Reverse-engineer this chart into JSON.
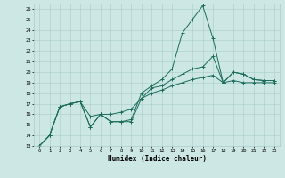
{
  "xlabel": "Humidex (Indice chaleur)",
  "bg_color": "#cde8e4",
  "line_color": "#1a6b5a",
  "xlim": [
    -0.5,
    23.5
  ],
  "ylim": [
    13,
    26.5
  ],
  "xticks": [
    0,
    1,
    2,
    3,
    4,
    5,
    6,
    7,
    8,
    9,
    10,
    11,
    12,
    13,
    14,
    15,
    16,
    17,
    18,
    19,
    20,
    21,
    22,
    23
  ],
  "yticks": [
    13,
    14,
    15,
    16,
    17,
    18,
    19,
    20,
    21,
    22,
    23,
    24,
    25,
    26
  ],
  "line1_x": [
    0,
    1,
    2,
    3,
    4,
    5,
    6,
    7,
    8,
    9,
    10,
    11,
    12,
    13,
    14,
    15,
    16,
    17,
    18,
    19,
    20,
    21,
    22,
    23
  ],
  "line1_y": [
    13.0,
    14.0,
    16.7,
    17.0,
    17.2,
    15.8,
    16.0,
    16.0,
    16.2,
    16.5,
    17.5,
    18.0,
    18.3,
    18.7,
    19.0,
    19.3,
    19.5,
    19.7,
    19.0,
    19.2,
    19.0,
    19.0,
    19.0,
    19.0
  ],
  "line2_x": [
    0,
    1,
    2,
    3,
    4,
    5,
    6,
    7,
    8,
    9,
    10,
    11,
    12,
    13,
    14,
    15,
    16,
    17,
    18,
    19,
    20,
    21,
    22,
    23
  ],
  "line2_y": [
    13.0,
    14.0,
    16.7,
    17.0,
    17.2,
    14.8,
    16.0,
    15.3,
    15.3,
    15.3,
    17.5,
    18.5,
    18.7,
    19.3,
    19.8,
    20.3,
    20.5,
    21.5,
    19.0,
    20.0,
    19.8,
    19.3,
    19.2,
    19.2
  ],
  "line3_x": [
    0,
    1,
    2,
    3,
    4,
    5,
    6,
    7,
    8,
    9,
    10,
    11,
    12,
    13,
    14,
    15,
    16,
    17,
    18,
    19,
    20,
    21,
    22,
    23
  ],
  "line3_y": [
    13.0,
    14.0,
    16.7,
    17.0,
    17.2,
    14.8,
    16.0,
    15.3,
    15.3,
    15.5,
    18.0,
    18.7,
    19.3,
    20.3,
    23.7,
    25.0,
    26.3,
    23.2,
    19.0,
    20.0,
    19.8,
    19.3,
    19.2,
    19.2
  ]
}
